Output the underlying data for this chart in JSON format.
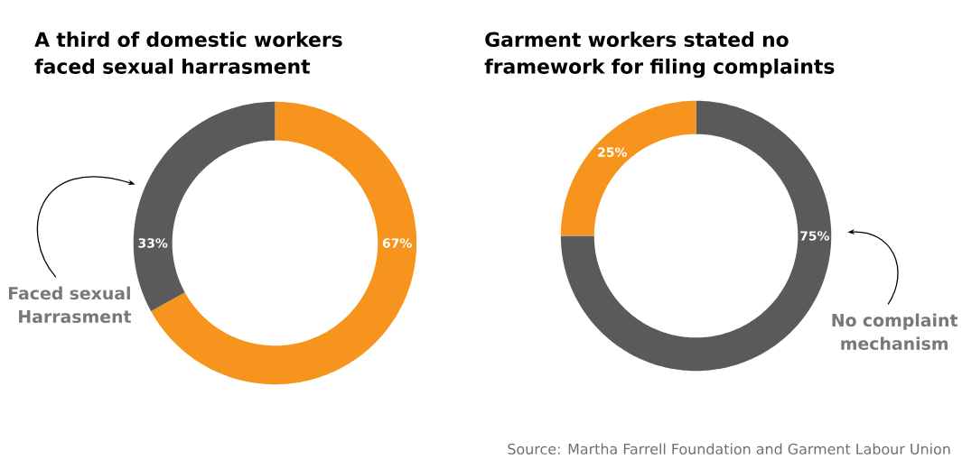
{
  "chart_data": [
    {
      "type": "donut",
      "title": "A third of domestic workers faced sexual harrasment",
      "categories": [
        null,
        "Faced sexual Harrasment"
      ],
      "values": [
        67,
        33
      ],
      "value_labels": [
        "67%",
        "33%"
      ],
      "colors": [
        "#f7941d",
        "#5a5a5a"
      ]
    },
    {
      "type": "donut",
      "title": "Garment workers stated no framework for filing complaints",
      "categories": [
        "No complaint mechanism",
        null
      ],
      "values": [
        75,
        25
      ],
      "value_labels": [
        "75%",
        "25%"
      ],
      "colors": [
        "#5a5a5a",
        "#f7941d"
      ],
      "annotations": [
        "Source: Martha Farrell Foundation and Garment Labour Union"
      ]
    }
  ]
}
